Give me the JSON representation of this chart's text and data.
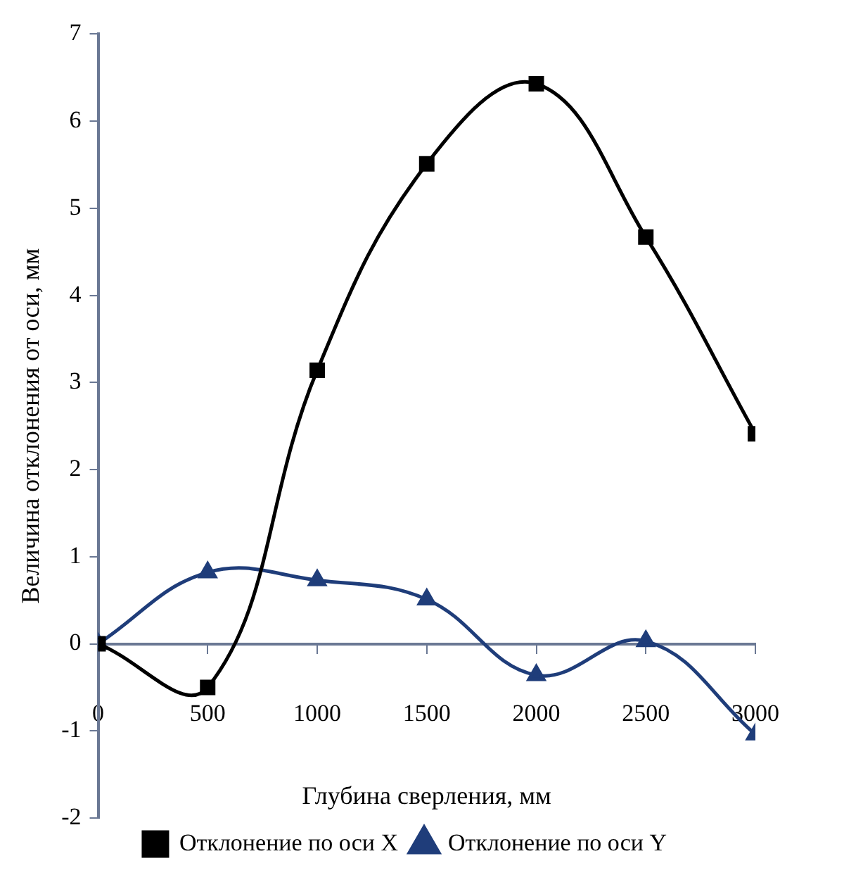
{
  "chart_data": {
    "type": "line",
    "xlabel": "Глубина сверления, мм",
    "ylabel": "Величина отклонения от оси, мм",
    "x": [
      0,
      500,
      1000,
      1500,
      2000,
      2500,
      3000
    ],
    "series": [
      {
        "name": "Отклонение по оси X",
        "color": "#000000",
        "marker": "square",
        "values": [
          0,
          -0.5,
          3.14,
          5.51,
          6.43,
          4.67,
          2.41
        ]
      },
      {
        "name": "Отклонение по оси Y",
        "color": "#1f3d7a",
        "marker": "triangle",
        "values": [
          0,
          0.82,
          0.73,
          0.51,
          -0.36,
          0.03,
          -1.04
        ]
      }
    ],
    "xlim": [
      0,
      3000
    ],
    "xticks": [
      0,
      500,
      1000,
      1500,
      2000,
      2500,
      3000
    ],
    "ylim": [
      -2,
      7
    ],
    "yticks": [
      -2,
      -1,
      0,
      1,
      2,
      3,
      4,
      5,
      6,
      7
    ],
    "grid": false,
    "legend": "bottom",
    "line_style": "solid"
  }
}
